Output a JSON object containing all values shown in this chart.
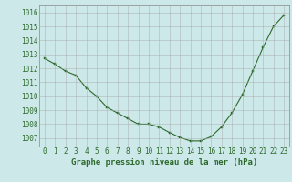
{
  "x": [
    0,
    1,
    2,
    3,
    4,
    5,
    6,
    7,
    8,
    9,
    10,
    11,
    12,
    13,
    14,
    15,
    16,
    17,
    18,
    19,
    20,
    21,
    22,
    23
  ],
  "y": [
    1012.7,
    1012.3,
    1011.8,
    1011.5,
    1010.6,
    1010.0,
    1009.2,
    1008.8,
    1008.4,
    1008.0,
    1008.0,
    1007.8,
    1007.4,
    1007.05,
    1006.8,
    1006.8,
    1007.1,
    1007.8,
    1008.8,
    1010.1,
    1011.8,
    1013.5,
    1015.0,
    1015.8
  ],
  "line_color": "#2d6a2d",
  "marker_color": "#2d6a2d",
  "bg_color": "#cce8e8",
  "grid_color": "#aaaaaa",
  "xlabel": "Graphe pression niveau de la mer (hPa)",
  "ylabel_ticks": [
    1007,
    1008,
    1009,
    1010,
    1011,
    1012,
    1013,
    1014,
    1015,
    1016
  ],
  "ylim": [
    1006.4,
    1016.5
  ],
  "xlim": [
    -0.5,
    23.5
  ],
  "xticks": [
    0,
    1,
    2,
    3,
    4,
    5,
    6,
    7,
    8,
    9,
    10,
    11,
    12,
    13,
    14,
    15,
    16,
    17,
    18,
    19,
    20,
    21,
    22,
    23
  ],
  "tick_color": "#2d6a2d",
  "label_fontsize": 6.5,
  "tick_fontsize": 5.5,
  "spine_color": "#888888"
}
